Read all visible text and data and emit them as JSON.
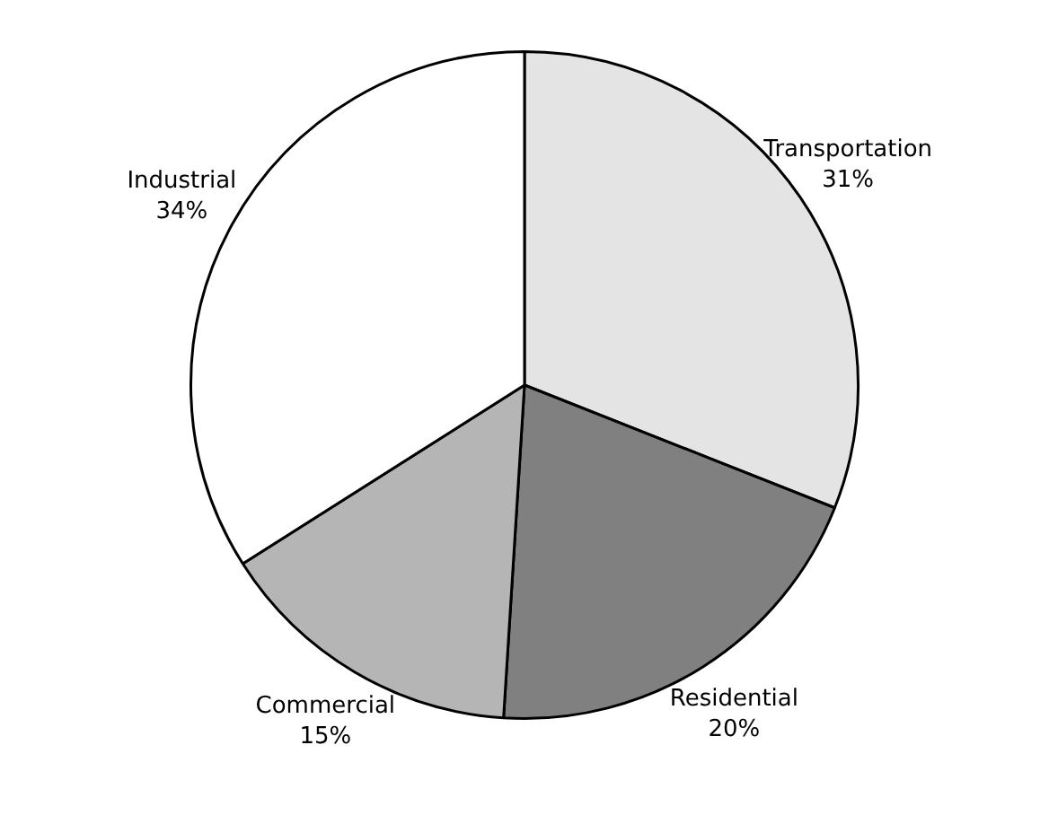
{
  "chart_data": {
    "type": "pie",
    "categories": [
      "Transportation",
      "Residential",
      "Commercial",
      "Industrial"
    ],
    "values": [
      31,
      20,
      15,
      34
    ],
    "value_labels": [
      "31%",
      "20%",
      "15%",
      "34%"
    ],
    "colors": [
      "#e4e4e4",
      "#808080",
      "#b5b5b5",
      "#ffffff"
    ],
    "legend": false
  }
}
